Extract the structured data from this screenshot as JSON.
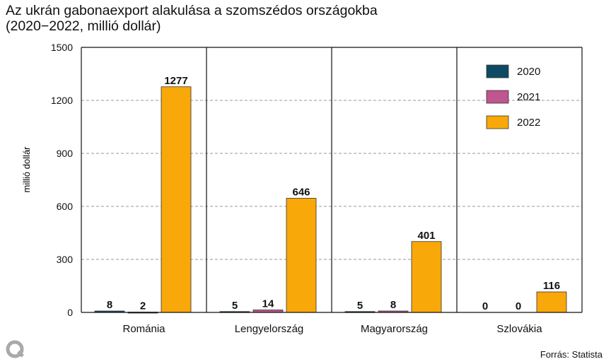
{
  "chart_data": {
    "type": "bar",
    "title": "Az ukrán gabonaexport alakulása a szomszédos országokba",
    "subtitle": "(2020−2022, millió dollár)",
    "ylabel": "millió dollár",
    "xlabel": "",
    "ylim": [
      0,
      1500
    ],
    "yticks": [
      0,
      300,
      600,
      900,
      1200,
      1500
    ],
    "grid": true,
    "legend_position": "top-right",
    "categories": [
      "Románia",
      "Lengyelország",
      "Magyarország",
      "Szlovákia"
    ],
    "series": [
      {
        "name": "2020",
        "color": "#0e4a63",
        "values": [
          8,
          5,
          5,
          0
        ]
      },
      {
        "name": "2021",
        "color": "#c0558f",
        "values": [
          2,
          14,
          8,
          0
        ]
      },
      {
        "name": "2022",
        "color": "#f9a80a",
        "values": [
          1277,
          646,
          401,
          116
        ]
      }
    ]
  },
  "source": "Forrás: Statista",
  "logo_letter": "Q"
}
